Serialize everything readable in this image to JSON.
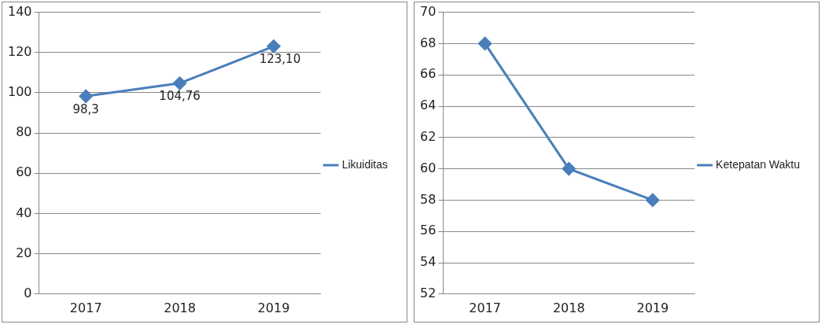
{
  "chart_data": [
    {
      "type": "line",
      "categories": [
        "2017",
        "2018",
        "2019"
      ],
      "series": [
        {
          "name": "Likuiditas",
          "color": "#4a7ebb",
          "values": [
            98.3,
            104.76,
            123.1
          ],
          "value_labels": [
            "98,3",
            "104,76",
            "123,10"
          ]
        }
      ],
      "ylim": [
        0,
        140
      ],
      "yticks": [
        0,
        20,
        40,
        60,
        80,
        100,
        120,
        140
      ],
      "grid": "y",
      "legend": "right",
      "marker": "diamond",
      "line_style": "solid"
    },
    {
      "type": "line",
      "categories": [
        "2017",
        "2018",
        "2019"
      ],
      "series": [
        {
          "name": "Ketepatan Waktu",
          "color": "#4a7ebb",
          "values": [
            68,
            60,
            58
          ]
        }
      ],
      "ylim": [
        52,
        70
      ],
      "yticks": [
        52,
        54,
        56,
        58,
        60,
        62,
        64,
        66,
        68,
        70
      ],
      "grid": "y",
      "legend": "right",
      "marker": "diamond",
      "line_style": "solid"
    }
  ]
}
